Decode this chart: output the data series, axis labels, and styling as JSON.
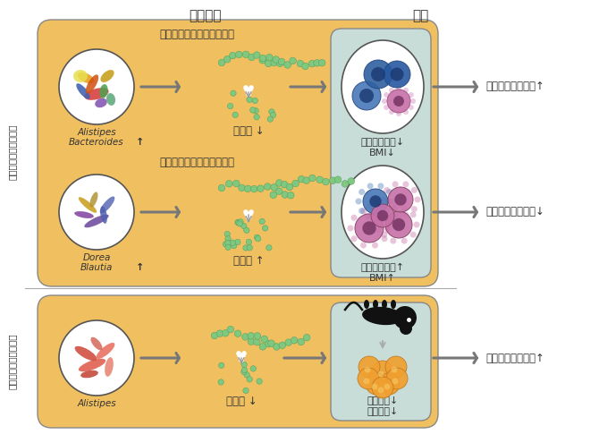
{
  "fig_w": 6.7,
  "fig_h": 4.95,
  "dpi": 100,
  "orange": "#f0c060",
  "teal": "#c8ddd8",
  "border_col": "#888888",
  "arrow_col": "#777777",
  "dot_green": "#80c880",
  "dot_edge": "#50a060",
  "title_gut": "腕内細菌",
  "title_human": "ヒト",
  "ylabel_human": "ヒト統合オミクス解析",
  "ylabel_mouse": "肥満モデルマウス解析",
  "section1": "インスリン感受性腕内細菌",
  "section2": "インスリン抵抗性腕内細菌",
  "bact1_line1": "Alistipes",
  "bact1_line2": "Bacteroides",
  "bact2_line1": "Dorea",
  "bact2_line2": "Blautia",
  "bact3": "Alistipes",
  "mono_down": "単糖類",
  "mono_up": "単糖類",
  "inflam_down": "炎症マーカー↓\nBMI↓",
  "inflam_up": "炎症マーカー↑\nBMI↑",
  "out1": "インスリン感受性↑",
  "out2": "インスリン感受性↓",
  "out3": "インスリン感受性↑",
  "weight": "体重増加↓\n脂質蓄積↓"
}
